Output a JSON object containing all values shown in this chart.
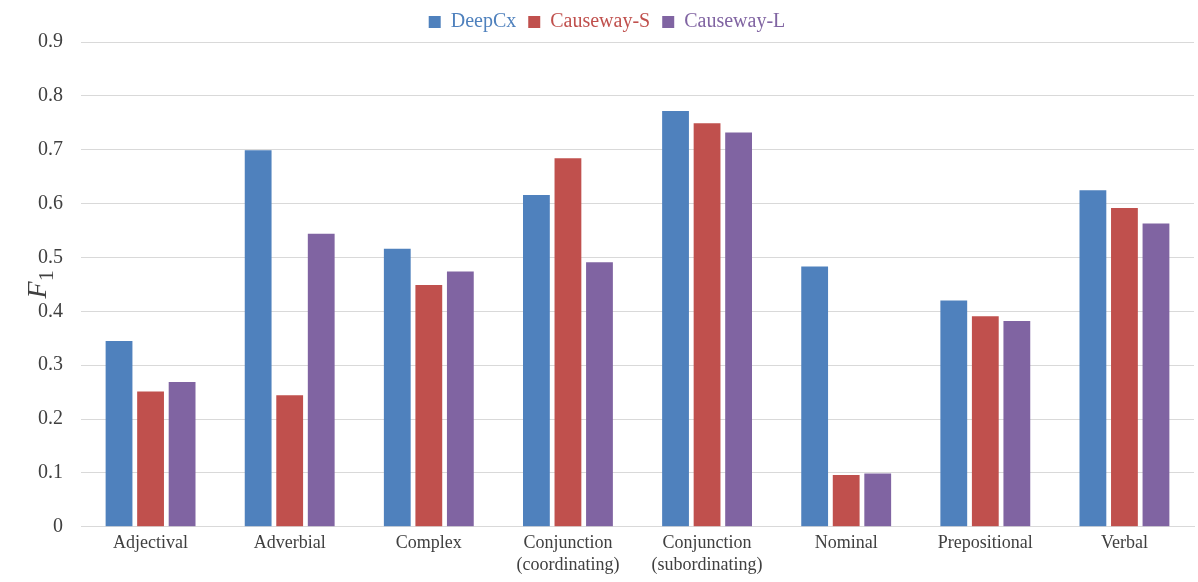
{
  "chart_data": {
    "type": "bar",
    "ylabel": "F$_{1}$",
    "categories": [
      "Adjectival",
      "Adverbial",
      "Complex",
      "Conjunction\n(coordinating)",
      "Conjunction\n(subordinating)",
      "Nominal",
      "Prepositional",
      "Verbal"
    ],
    "series": [
      {
        "name": "DeepCx",
        "color": "#4f81bd",
        "values": [
          0.345,
          0.699,
          0.516,
          0.616,
          0.772,
          0.483,
          0.42,
          0.625
        ]
      },
      {
        "name": "Causeway-S",
        "color": "#c0504d",
        "values": [
          0.251,
          0.244,
          0.449,
          0.684,
          0.749,
          0.096,
          0.391,
          0.592
        ]
      },
      {
        "name": "Causeway-L",
        "color": "#8064a2",
        "values": [
          0.269,
          0.544,
          0.474,
          0.491,
          0.732,
          0.099,
          0.382,
          0.563
        ]
      }
    ],
    "ylim": [
      0,
      0.9
    ],
    "yticks": [
      0,
      0.1,
      0.2,
      0.3,
      0.4,
      0.5,
      0.6,
      0.7,
      0.8,
      0.9
    ],
    "grid": "y",
    "legend": "top"
  }
}
